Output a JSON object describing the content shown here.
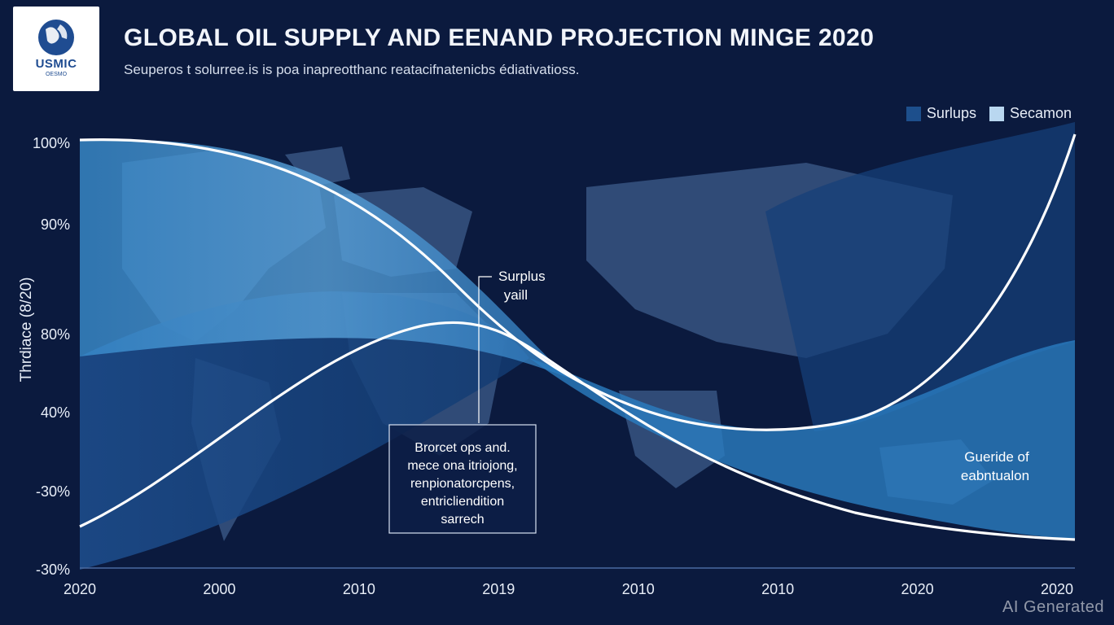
{
  "logo": {
    "text": "USMIC",
    "subtext": "OESMO"
  },
  "title": "GLOBAL OIL SUPPLY AND EENAND PROJECTION MINGE 2020",
  "subtitle": "Seuperos t solurree.is is poa inapreotthanc reatacifnatenicbs édiativatioss.",
  "legend": [
    {
      "label": "Surlups",
      "color": "#1d4f8c"
    },
    {
      "label": "Secamon",
      "color": "#b9d7f0"
    }
  ],
  "watermark": "AI Generated",
  "annotations": {
    "callout_top": [
      "Surplus",
      "yaill"
    ],
    "box": [
      "Brorcet ops and.",
      "mece ona itriojong,",
      "renpionatorcpens,",
      "entricliendition",
      "sarrech"
    ],
    "right": [
      "Gueride of",
      "eabntualon"
    ]
  },
  "chart_data": {
    "type": "area",
    "title": "GLOBAL OIL SUPPLY AND EENAND PROJECTION MINGE 2020",
    "ylabel": "Thrdiace (8/20)",
    "xlabel": "",
    "x_ticks": [
      "2020",
      "2000",
      "2010",
      "2019",
      "2010",
      "2010",
      "2020",
      "2020"
    ],
    "y_ticks": [
      "100%",
      "90%",
      "80%",
      "40%",
      "-30%",
      "-30%"
    ],
    "legend_position": "top-right",
    "grid": false,
    "series": [
      {
        "name": "Surlups",
        "color": "#1d4f8c",
        "values": [
          "90%",
          "85%",
          "75%",
          "55%",
          "45%",
          "35%",
          "30%",
          "28%"
        ]
      },
      {
        "name": "Secamon",
        "color": "#b9d7f0",
        "values": [
          "100%",
          "98%",
          "88%",
          "62%",
          "42%",
          "40%",
          "58%",
          "100%"
        ]
      }
    ],
    "curves": [
      {
        "label": "Surplus yaill",
        "values": [
          "-30%",
          "40%",
          "80%",
          "80%",
          "60%",
          "20%",
          "-20%",
          "-30%"
        ]
      }
    ]
  },
  "colors": {
    "background": "#0b1a3e",
    "band_light": "#2f86c8",
    "band_dark": "#1a4a8a",
    "line": "#ffffff"
  }
}
